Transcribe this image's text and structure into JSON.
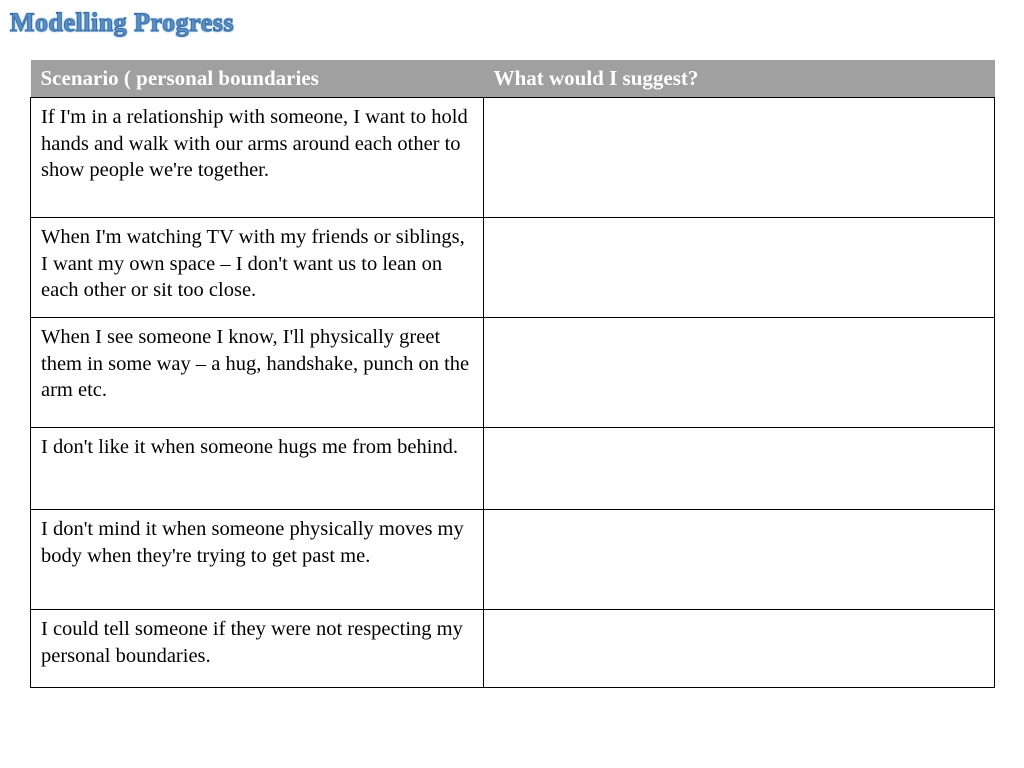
{
  "title": "Modelling Progress",
  "table": {
    "columns": [
      "Scenario ( personal boundaries",
      "What would I suggest?"
    ],
    "rows": [
      {
        "scenario": "If I'm in a relationship with someone, I want to hold hands and walk with our arms around each other to show people we're together.",
        "suggest": ""
      },
      {
        "scenario": "When I'm watching TV with my friends or siblings, I want my own space – I don't want us to lean on each other or sit too close.",
        "suggest": ""
      },
      {
        "scenario": "When I see someone I know, I'll physically greet them in some way – a hug, handshake, punch on the arm etc.",
        "suggest": ""
      },
      {
        "scenario": "I don't like it when someone hugs me from behind.",
        "suggest": ""
      },
      {
        "scenario": "I don't mind it when someone physically moves my body when they're trying to get past me.",
        "suggest": ""
      },
      {
        "scenario": "I could tell someone if they were not respecting my personal boundaries.",
        "suggest": ""
      }
    ],
    "header_bg": "#a0a0a0",
    "header_text_color": "#ffffff",
    "cell_border_color": "#000000",
    "cell_text_color": "#000000",
    "title_color": "#5a8fc7",
    "font_family": "Comic Sans MS",
    "header_fontsize": 21,
    "cell_fontsize": 20.5,
    "col_widths_pct": [
      47,
      53
    ]
  }
}
